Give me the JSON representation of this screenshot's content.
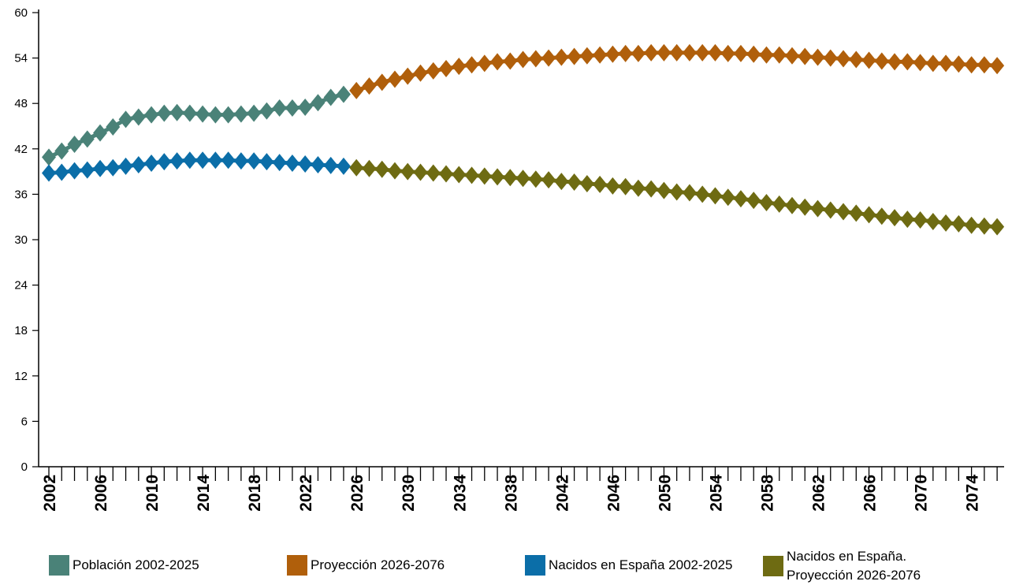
{
  "chart_data": {
    "type": "line",
    "yaxis": {
      "min": 0,
      "max": 60,
      "ticks": [
        0,
        6,
        12,
        18,
        24,
        30,
        36,
        42,
        48,
        54,
        60
      ]
    },
    "xaxis": {
      "min": 2002,
      "max": 2076,
      "tick_labels": [
        "2002",
        "2006",
        "2010",
        "2014",
        "2018",
        "2022",
        "2026",
        "2030",
        "2034",
        "2038",
        "2042",
        "2046",
        "2050",
        "2054",
        "2058",
        "2062",
        "2066",
        "2070",
        "2074"
      ]
    },
    "marker": "diamond",
    "series": [
      {
        "name": "Población 2002-2025",
        "color": "#4a8278",
        "x": [
          2002,
          2003,
          2004,
          2005,
          2006,
          2007,
          2008,
          2009,
          2010,
          2011,
          2012,
          2013,
          2014,
          2015,
          2016,
          2017,
          2018,
          2019,
          2020,
          2021,
          2022,
          2023,
          2024,
          2025
        ],
        "values": [
          40.9,
          41.7,
          42.6,
          43.3,
          44.1,
          44.9,
          45.9,
          46.2,
          46.5,
          46.7,
          46.8,
          46.7,
          46.6,
          46.5,
          46.5,
          46.6,
          46.7,
          47.0,
          47.4,
          47.4,
          47.5,
          48.1,
          48.8,
          49.2
        ]
      },
      {
        "name": "Proyección 2026-2076",
        "color": "#b05f0b",
        "x": [
          2026,
          2027,
          2028,
          2029,
          2030,
          2031,
          2032,
          2033,
          2034,
          2035,
          2036,
          2037,
          2038,
          2039,
          2040,
          2041,
          2042,
          2043,
          2044,
          2045,
          2046,
          2047,
          2048,
          2049,
          2050,
          2051,
          2052,
          2053,
          2054,
          2055,
          2056,
          2057,
          2058,
          2059,
          2060,
          2061,
          2062,
          2063,
          2064,
          2065,
          2066,
          2067,
          2068,
          2069,
          2070,
          2071,
          2072,
          2073,
          2074,
          2075,
          2076
        ],
        "values": [
          49.7,
          50.3,
          50.8,
          51.2,
          51.6,
          52.0,
          52.3,
          52.6,
          52.9,
          53.1,
          53.3,
          53.5,
          53.6,
          53.8,
          53.9,
          54.0,
          54.1,
          54.2,
          54.3,
          54.4,
          54.5,
          54.6,
          54.6,
          54.7,
          54.7,
          54.7,
          54.7,
          54.7,
          54.7,
          54.6,
          54.6,
          54.5,
          54.4,
          54.4,
          54.3,
          54.2,
          54.1,
          54.0,
          53.9,
          53.8,
          53.7,
          53.6,
          53.5,
          53.5,
          53.4,
          53.3,
          53.3,
          53.2,
          53.1,
          53.1,
          53.0
        ]
      },
      {
        "name": "Nacidos en España 2002-2025",
        "color": "#0b6ea8",
        "x": [
          2002,
          2003,
          2004,
          2005,
          2006,
          2007,
          2008,
          2009,
          2010,
          2011,
          2012,
          2013,
          2014,
          2015,
          2016,
          2017,
          2018,
          2019,
          2020,
          2021,
          2022,
          2023,
          2024,
          2025
        ],
        "values": [
          38.8,
          38.9,
          39.1,
          39.2,
          39.4,
          39.5,
          39.7,
          39.9,
          40.1,
          40.3,
          40.4,
          40.5,
          40.5,
          40.5,
          40.5,
          40.4,
          40.4,
          40.3,
          40.2,
          40.1,
          40.0,
          39.9,
          39.8,
          39.7
        ]
      },
      {
        "name": "Nacidos en España. Proyección 2026-2076",
        "color": "#6e6b12",
        "x": [
          2026,
          2027,
          2028,
          2029,
          2030,
          2031,
          2032,
          2033,
          2034,
          2035,
          2036,
          2037,
          2038,
          2039,
          2040,
          2041,
          2042,
          2043,
          2044,
          2045,
          2046,
          2047,
          2048,
          2049,
          2050,
          2051,
          2052,
          2053,
          2054,
          2055,
          2056,
          2057,
          2058,
          2059,
          2060,
          2061,
          2062,
          2063,
          2064,
          2065,
          2066,
          2067,
          2068,
          2069,
          2070,
          2071,
          2072,
          2073,
          2074,
          2075,
          2076
        ],
        "values": [
          39.5,
          39.4,
          39.3,
          39.1,
          39.0,
          38.9,
          38.8,
          38.7,
          38.6,
          38.5,
          38.4,
          38.3,
          38.2,
          38.1,
          38.0,
          37.9,
          37.7,
          37.6,
          37.4,
          37.3,
          37.1,
          37.0,
          36.8,
          36.7,
          36.5,
          36.3,
          36.2,
          36.0,
          35.8,
          35.6,
          35.4,
          35.2,
          34.9,
          34.7,
          34.5,
          34.3,
          34.1,
          33.9,
          33.7,
          33.5,
          33.3,
          33.1,
          32.9,
          32.7,
          32.6,
          32.4,
          32.2,
          32.1,
          31.9,
          31.8,
          31.7
        ]
      }
    ]
  },
  "legend": {
    "items": [
      {
        "label": "Población 2002-2025",
        "color": "#4a8278"
      },
      {
        "label": "Proyección 2026-2076",
        "color": "#b05f0b"
      },
      {
        "label": "Nacidos en España 2002-2025",
        "color": "#0b6ea8"
      },
      {
        "label": "Nacidos en España. Proyección 2026-2076",
        "color": "#6e6b12"
      }
    ]
  }
}
